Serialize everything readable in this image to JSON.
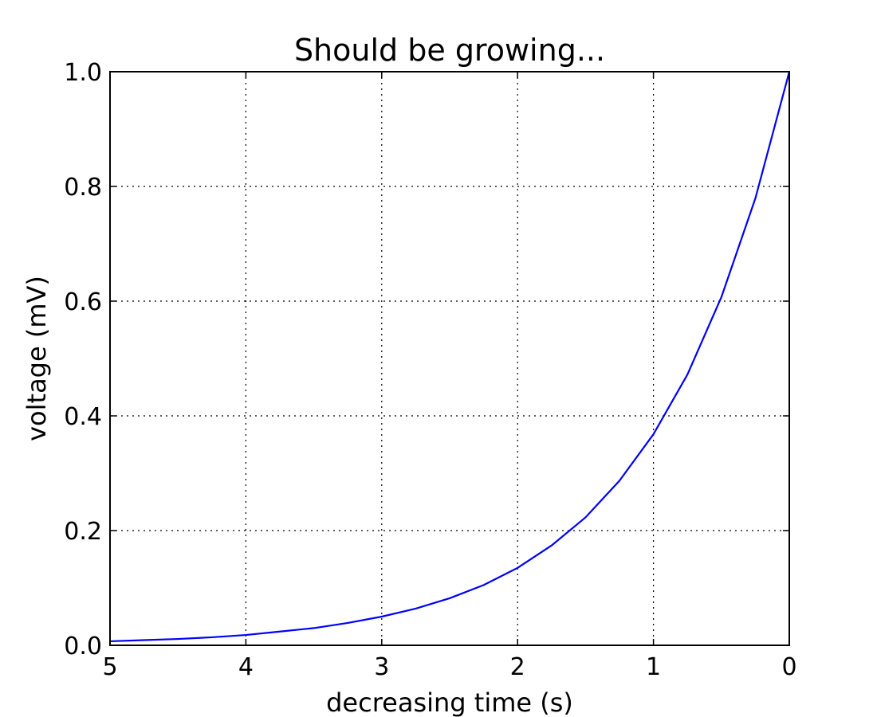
{
  "chart_data": {
    "type": "line",
    "title": "Should be growing...",
    "xlabel": "decreasing time (s)",
    "ylabel": "voltage (mV)",
    "xlim": [
      5,
      0
    ],
    "ylim": [
      0.0,
      1.0
    ],
    "x_ticks": [
      5,
      4,
      3,
      2,
      1,
      0
    ],
    "x_tick_labels": [
      "5",
      "4",
      "3",
      "2",
      "1",
      "0"
    ],
    "y_ticks": [
      0.0,
      0.2,
      0.4,
      0.6,
      0.8,
      1.0
    ],
    "y_tick_labels": [
      "0.0",
      "0.2",
      "0.4",
      "0.6",
      "0.8",
      "1.0"
    ],
    "grid": true,
    "x_axis_inverted": true,
    "series": [
      {
        "color": "#0000ff",
        "x": [
          0.0,
          0.25,
          0.5,
          0.75,
          1.0,
          1.25,
          1.5,
          1.75,
          2.0,
          2.25,
          2.5,
          2.75,
          3.0,
          3.25,
          3.5,
          3.75,
          4.0,
          4.25,
          4.5,
          4.75,
          5.0
        ],
        "y": [
          1.0,
          0.779,
          0.607,
          0.472,
          0.368,
          0.287,
          0.223,
          0.174,
          0.135,
          0.105,
          0.082,
          0.064,
          0.05,
          0.039,
          0.03,
          0.024,
          0.018,
          0.014,
          0.011,
          0.009,
          0.007
        ]
      }
    ]
  }
}
